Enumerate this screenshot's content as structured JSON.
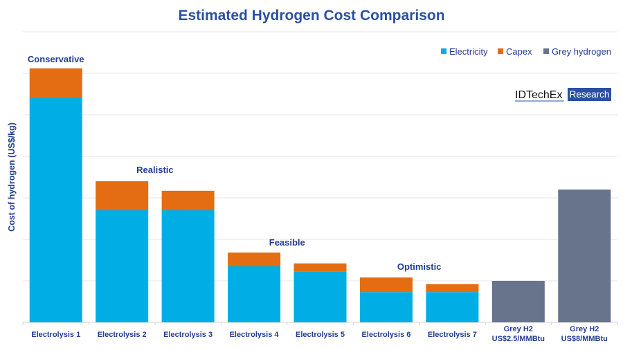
{
  "chart_data": {
    "type": "bar",
    "stacked": true,
    "title": "Estimated Hydrogen Cost Comparison",
    "xlabel": "",
    "ylabel": "Cost of hydrogen (US$/kg)",
    "y_tick_labels_shown": false,
    "ylim": [
      0,
      7
    ],
    "grid": true,
    "legend_position": "top-right",
    "categories": [
      [
        "Electrolysis 1"
      ],
      [
        "Electrolysis 2"
      ],
      [
        "Electrolysis 3"
      ],
      [
        "Electrolysis 4"
      ],
      [
        "Electrolysis 5"
      ],
      [
        "Electrolysis 6"
      ],
      [
        "Electrolysis 7"
      ],
      [
        "Grey H2",
        "US$2.5/MMBtu"
      ],
      [
        "Grey H2",
        "US$8/MMBtu"
      ]
    ],
    "series": [
      {
        "name": "Electricity",
        "color": "#00aee6",
        "values": [
          5.4,
          2.7,
          2.7,
          1.35,
          1.23,
          0.73,
          0.73,
          0,
          0
        ]
      },
      {
        "name": "Capex",
        "color": "#e46c12",
        "values": [
          0.72,
          0.7,
          0.47,
          0.33,
          0.19,
          0.35,
          0.19,
          0,
          0
        ]
      },
      {
        "name": "Grey hydrogen",
        "color": "#68738c",
        "values": [
          0,
          0,
          0,
          0,
          0,
          0,
          0,
          1.0,
          3.2
        ]
      }
    ],
    "annotations": [
      {
        "text": "Conservative",
        "category_index": 0
      },
      {
        "text": "Realistic",
        "category_index": 1.5
      },
      {
        "text": "Feasible",
        "category_index": 3.5
      },
      {
        "text": "Optimistic",
        "category_index": 5.5
      }
    ]
  },
  "logo": {
    "name": "IDTechEx",
    "tag": "Research"
  }
}
